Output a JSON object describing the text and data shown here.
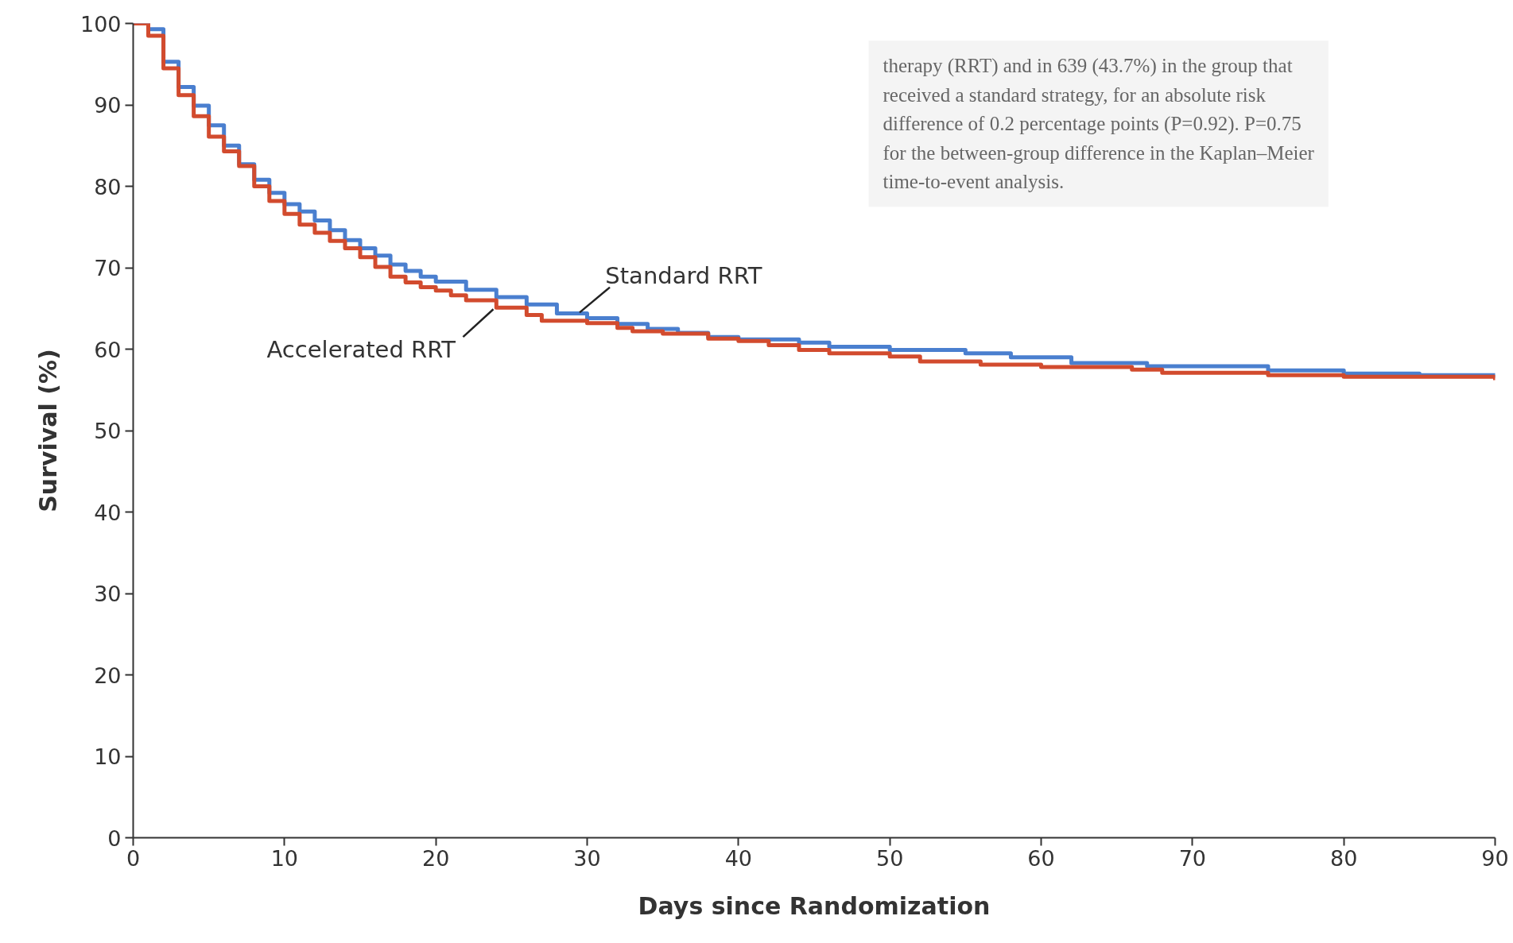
{
  "chart_data": {
    "type": "step",
    "xlabel": "Days since Randomization",
    "ylabel": "Survival (%)",
    "xlim": [
      0,
      90
    ],
    "ylim": [
      0,
      100
    ],
    "xticks": [
      0,
      10,
      20,
      30,
      40,
      50,
      60,
      70,
      80,
      90
    ],
    "yticks": [
      0,
      10,
      20,
      30,
      40,
      50,
      60,
      70,
      80,
      90,
      100
    ],
    "grid": false,
    "marker": "none",
    "line_style": "solid",
    "annotations": [
      "therapy (RRT) and in 639 (43.7%) in the group that received a standard strategy, for an absolute risk difference of 0.2 percentage points (P=0.92). P=0.75 for the between-group difference in the Kaplan–Meier time-to-event analysis."
    ],
    "series": [
      {
        "name": "Standard RRT",
        "color": "#4a7fcf",
        "x": [
          0,
          1,
          2,
          3,
          4,
          5,
          6,
          7,
          8,
          9,
          10,
          11,
          12,
          13,
          14,
          15,
          16,
          17,
          18,
          19,
          20,
          22,
          24,
          26,
          28,
          30,
          32,
          34,
          36,
          38,
          40,
          44,
          46,
          50,
          55,
          58,
          62,
          67,
          75,
          80,
          85,
          90
        ],
        "values": [
          100,
          99.3,
          95.3,
          92.2,
          89.9,
          87.5,
          85,
          82.7,
          80.8,
          79.2,
          77.8,
          76.9,
          75.8,
          74.6,
          73.4,
          72.4,
          71.5,
          70.4,
          69.6,
          68.9,
          68.3,
          67.3,
          66.4,
          65.5,
          64.4,
          63.8,
          63.1,
          62.5,
          62,
          61.5,
          61.2,
          60.8,
          60.3,
          59.9,
          59.5,
          59,
          58.3,
          57.9,
          57.4,
          57,
          56.8,
          56.5
        ]
      },
      {
        "name": "Accelerated RRT",
        "color": "#d24b2e",
        "x": [
          0,
          1,
          2,
          3,
          4,
          5,
          6,
          7,
          8,
          9,
          10,
          11,
          12,
          13,
          14,
          15,
          16,
          17,
          18,
          19,
          20,
          21,
          22,
          24,
          26,
          27,
          30,
          32,
          33,
          35,
          38,
          40,
          42,
          44,
          46,
          50,
          52,
          56,
          60,
          66,
          68,
          75,
          80,
          90
        ],
        "values": [
          100,
          98.5,
          94.5,
          91.2,
          88.6,
          86.1,
          84.3,
          82.5,
          80,
          78.2,
          76.6,
          75.3,
          74.3,
          73.3,
          72.4,
          71.3,
          70.1,
          68.9,
          68.2,
          67.6,
          67.2,
          66.6,
          66,
          65.1,
          64.2,
          63.5,
          63.2,
          62.6,
          62.2,
          61.9,
          61.3,
          61,
          60.5,
          59.9,
          59.5,
          59.1,
          58.5,
          58.1,
          57.8,
          57.5,
          57.1,
          56.8,
          56.6,
          56.2
        ]
      }
    ]
  }
}
